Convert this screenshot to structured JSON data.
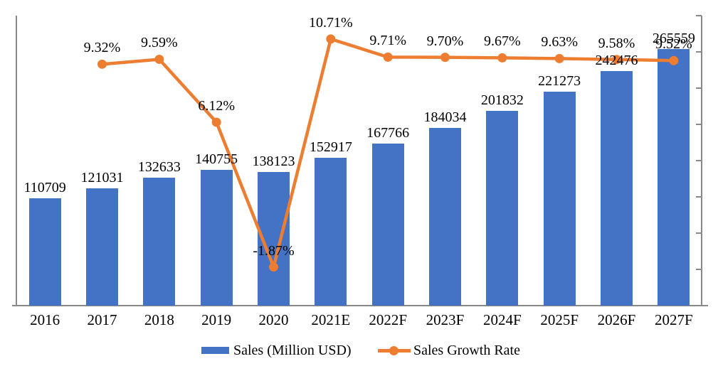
{
  "colors": {
    "bar": "#4472C4",
    "line": "#ED7D31",
    "axis": "#898989",
    "text": "#000000",
    "background": "#FFFFFF"
  },
  "legend": {
    "sales_label": "Sales (Million USD)",
    "growth_label": "Sales Growth Rate"
  },
  "chart_data": {
    "type": "combo",
    "categories": [
      "2016",
      "2017",
      "2018",
      "2019",
      "2020",
      "2021E",
      "2022F",
      "2023F",
      "2024F",
      "2025F",
      "2026F",
      "2027F"
    ],
    "series": [
      {
        "name": "Sales (Million USD)",
        "type": "bar",
        "axis": "left",
        "color": "#4472C4",
        "values": [
          110709,
          121031,
          132633,
          140755,
          138123,
          152917,
          167766,
          184034,
          201832,
          221273,
          242476,
          265559
        ],
        "labels": [
          "110709",
          "121031",
          "132633",
          "140755",
          "138123",
          "152917",
          "167766",
          "184034",
          "201832",
          "221273",
          "242476",
          "265559"
        ]
      },
      {
        "name": "Sales Growth Rate",
        "type": "line",
        "axis": "right",
        "color": "#ED7D31",
        "values": [
          null,
          9.32,
          9.59,
          6.12,
          -1.87,
          10.71,
          9.71,
          9.7,
          9.67,
          9.63,
          9.58,
          9.52
        ],
        "labels": [
          null,
          "9.32%",
          "9.59%",
          "6.12%",
          "-1.87%",
          "10.71%",
          "9.71%",
          "9.70%",
          "9.67%",
          "9.63%",
          "9.58%",
          "9.52%"
        ]
      }
    ],
    "left_axis": {
      "min": 0,
      "max": 300000,
      "tick_labels_visible": false
    },
    "right_axis": {
      "min": -4,
      "max": 12,
      "tick_step": 2,
      "tick_labels_visible": false
    },
    "grid": false,
    "legend_position": "bottom",
    "title": ""
  }
}
